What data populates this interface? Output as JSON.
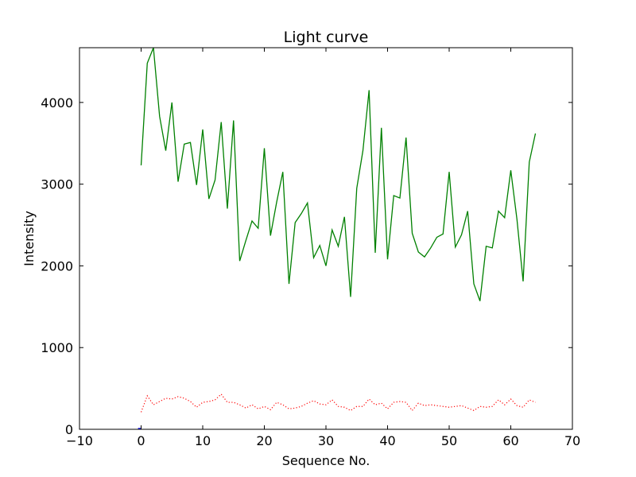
{
  "chart_data": {
    "type": "line",
    "title": "Light curve",
    "xlabel": "Sequence No.",
    "ylabel": "Intensity",
    "xlim": [
      -10,
      70
    ],
    "ylim": [
      0,
      4670
    ],
    "xticks": [
      -10,
      0,
      10,
      20,
      30,
      40,
      50,
      60,
      70
    ],
    "yticks": [
      0,
      1000,
      2000,
      3000,
      4000
    ],
    "grid": false,
    "legend": "none",
    "series": [
      {
        "style": "solid",
        "color": "#008000",
        "x": [
          0,
          1,
          2,
          3,
          4,
          5,
          6,
          7,
          8,
          9,
          10,
          11,
          12,
          13,
          14,
          15,
          16,
          17,
          18,
          19,
          20,
          21,
          22,
          23,
          24,
          25,
          26,
          27,
          28,
          29,
          30,
          31,
          32,
          33,
          34,
          35,
          36,
          37,
          38,
          39,
          40,
          41,
          42,
          43,
          44,
          45,
          46,
          47,
          48,
          49,
          50,
          51,
          52,
          53,
          54,
          55,
          56,
          57,
          58,
          59,
          60,
          61,
          62,
          63,
          64
        ],
        "values": [
          3230,
          4480,
          4670,
          3830,
          3410,
          4000,
          3030,
          3490,
          3510,
          2990,
          3670,
          2820,
          3050,
          3760,
          2700,
          3780,
          2060,
          2310,
          2550,
          2460,
          3440,
          2370,
          2780,
          3150,
          1780,
          2530,
          2640,
          2770,
          2100,
          2250,
          2000,
          2440,
          2240,
          2600,
          1620,
          2950,
          3410,
          4150,
          2160,
          3690,
          2080,
          2860,
          2830,
          3570,
          2400,
          2170,
          2110,
          2220,
          2350,
          2390,
          3150,
          2230,
          2380,
          2670,
          1780,
          1570,
          2240,
          2220,
          2670,
          2590,
          3170,
          2570,
          1810,
          3270,
          3620
        ]
      },
      {
        "style": "dotted",
        "color": "#ff0000",
        "x": [
          0,
          1,
          2,
          3,
          4,
          5,
          6,
          7,
          8,
          9,
          10,
          11,
          12,
          13,
          14,
          15,
          16,
          17,
          18,
          19,
          20,
          21,
          22,
          23,
          24,
          25,
          26,
          27,
          28,
          29,
          30,
          31,
          32,
          33,
          34,
          35,
          36,
          37,
          38,
          39,
          40,
          41,
          42,
          43,
          44,
          45,
          46,
          47,
          48,
          49,
          50,
          51,
          52,
          53,
          54,
          55,
          56,
          57,
          58,
          59,
          60,
          61,
          62,
          63,
          64
        ],
        "values": [
          210,
          410,
          300,
          340,
          380,
          370,
          400,
          380,
          340,
          270,
          330,
          340,
          360,
          430,
          330,
          330,
          300,
          260,
          300,
          250,
          280,
          240,
          330,
          300,
          250,
          260,
          280,
          320,
          350,
          310,
          300,
          360,
          280,
          270,
          230,
          280,
          280,
          370,
          300,
          320,
          250,
          330,
          340,
          330,
          230,
          320,
          290,
          300,
          290,
          280,
          270,
          280,
          290,
          260,
          230,
          280,
          270,
          280,
          360,
          300,
          370,
          290,
          270,
          360,
          330
        ]
      },
      {
        "style": "solid",
        "color": "#0000ff",
        "x": [
          -0.5,
          0
        ],
        "values": [
          10,
          10
        ]
      }
    ]
  }
}
